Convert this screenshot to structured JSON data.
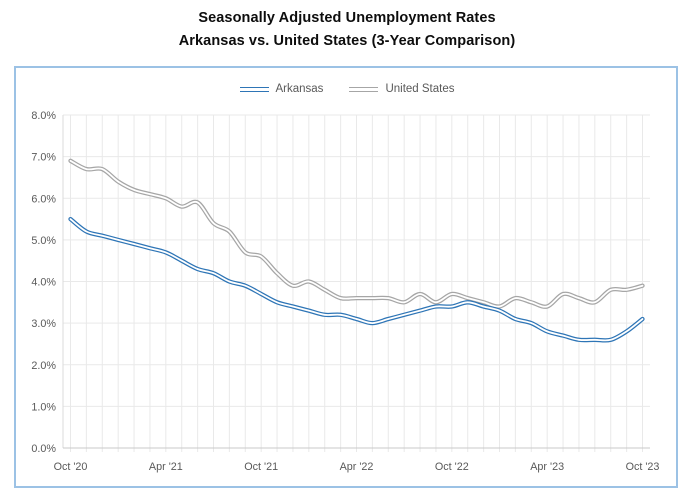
{
  "page": {
    "title_line1": "Seasonally Adjusted Unemployment Rates",
    "title_line2": "Arkansas vs. United States (3-Year Comparison)"
  },
  "legend": {
    "items": [
      {
        "label": "Arkansas",
        "color": "#2E75B6"
      },
      {
        "label": "United States",
        "color": "#A6A6A6"
      }
    ]
  },
  "colors": {
    "arkansas_line": "#2E75B6",
    "us_line": "#A6A6A6",
    "line_inner_stripe": "#FFFFFF",
    "chart_border": "#9CC2E5",
    "gridline": "#E9E9E9",
    "axis_line": "#C9C9C9",
    "tick_label": "#595959",
    "title_text": "#0D0D0D"
  },
  "chart_data": {
    "type": "line",
    "title": "Seasonally Adjusted Unemployment Rates",
    "subtitle": "Arkansas vs. United States (3-Year Comparison)",
    "xlabel": "",
    "ylabel": "",
    "ylim": [
      0,
      8
    ],
    "y_tick_step": 1,
    "y_tick_labels": [
      "0.0%",
      "1.0%",
      "2.0%",
      "3.0%",
      "4.0%",
      "5.0%",
      "6.0%",
      "7.0%",
      "8.0%"
    ],
    "x_tick_labels": [
      "Oct '20",
      "Apr '21",
      "Oct '21",
      "Apr '22",
      "Oct '22",
      "Apr '23",
      "Oct '23"
    ],
    "x_tick_every": 6,
    "grid": true,
    "smoothed_lines": true,
    "legend_position": "top-center",
    "x": [
      "Oct '20",
      "Nov '20",
      "Dec '20",
      "Jan '21",
      "Feb '21",
      "Mar '21",
      "Apr '21",
      "May '21",
      "Jun '21",
      "Jul '21",
      "Aug '21",
      "Sep '21",
      "Oct '21",
      "Nov '21",
      "Dec '21",
      "Jan '22",
      "Feb '22",
      "Mar '22",
      "Apr '22",
      "May '22",
      "Jun '22",
      "Jul '22",
      "Aug '22",
      "Sep '22",
      "Oct '22",
      "Nov '22",
      "Dec '22",
      "Jan '23",
      "Feb '23",
      "Mar '23",
      "Apr '23",
      "May '23",
      "Jun '23",
      "Jul '23",
      "Aug '23",
      "Sep '23",
      "Oct '23"
    ],
    "series": [
      {
        "name": "Arkansas",
        "color": "#2E75B6",
        "unit": "percent",
        "values": [
          5.5,
          5.2,
          5.1,
          5.0,
          4.9,
          4.8,
          4.7,
          4.5,
          4.3,
          4.2,
          4.0,
          3.9,
          3.7,
          3.5,
          3.4,
          3.3,
          3.2,
          3.2,
          3.1,
          3.0,
          3.1,
          3.2,
          3.3,
          3.4,
          3.4,
          3.5,
          3.4,
          3.3,
          3.1,
          3.0,
          2.8,
          2.7,
          2.6,
          2.6,
          2.6,
          2.8,
          3.1
        ]
      },
      {
        "name": "United States",
        "color": "#A6A6A6",
        "unit": "percent",
        "values": [
          6.9,
          6.7,
          6.7,
          6.4,
          6.2,
          6.1,
          6.0,
          5.8,
          5.9,
          5.4,
          5.2,
          4.7,
          4.6,
          4.2,
          3.9,
          4.0,
          3.8,
          3.6,
          3.6,
          3.6,
          3.6,
          3.5,
          3.7,
          3.5,
          3.7,
          3.6,
          3.5,
          3.4,
          3.6,
          3.5,
          3.4,
          3.7,
          3.6,
          3.5,
          3.8,
          3.8,
          3.9
        ]
      }
    ]
  }
}
